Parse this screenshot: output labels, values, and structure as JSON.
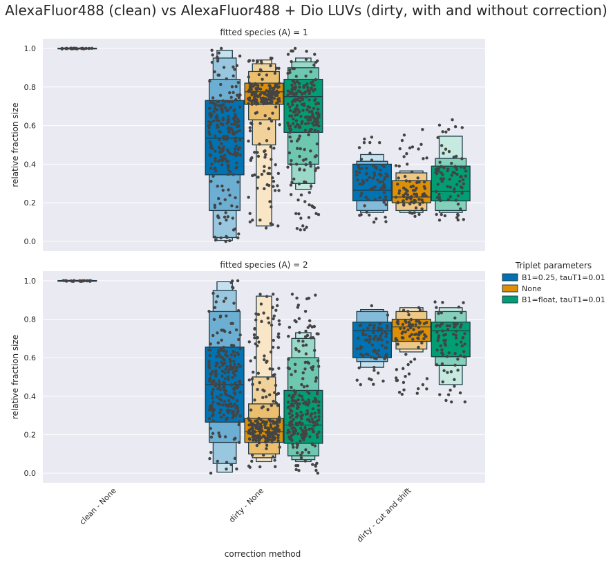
{
  "figure": {
    "title": "AlexaFluor488 (clean) vs AlexaFluor488 + Dio LUVs (dirty, with and without correction)",
    "xlabel": "correction method",
    "legend_title": "Triplet parameters",
    "colors": {
      "background": "#eaeaf2",
      "grid": "#ffffff",
      "edge": "#1e3a47",
      "points": "#444444"
    }
  },
  "chart_data": {
    "type": "boxenplot",
    "categories": [
      "clean - None",
      "dirty - None",
      "dirty - cut and shift"
    ],
    "series": [
      {
        "name": "B1=0.25, tauT1=0.01",
        "color": "#0173b2",
        "light": "#71b1d6"
      },
      {
        "name": "None",
        "color": "#de8f05",
        "light": "#eec27a"
      },
      {
        "name": "B1=float, tauT1=0.01",
        "color": "#029e73",
        "light": "#74c6ab"
      }
    ],
    "ylim": [
      -0.05,
      1.05
    ],
    "yticks": [
      "0.0",
      "0.2",
      "0.4",
      "0.6",
      "0.8",
      "1.0"
    ],
    "ylabel": "relative fraction size",
    "panels": [
      {
        "title": "fitted species (A) = 1",
        "groups": [
          {
            "category": "clean - None",
            "series": "B1=0.25, tauT1=0.01",
            "median": 1.0,
            "levels": [
              [
                0.999,
                1.001
              ],
              [
                0.998,
                1.002
              ]
            ],
            "min": 0.997,
            "max": 1.0,
            "n": 25
          },
          {
            "category": "dirty - None",
            "series": "B1=0.25, tauT1=0.01",
            "median": 0.535,
            "levels": [
              [
                0.345,
                0.73
              ],
              [
                0.16,
                0.84
              ],
              [
                0.02,
                0.95
              ],
              [
                0.005,
                0.99
              ]
            ],
            "min": 0.0,
            "max": 1.0,
            "n": 240
          },
          {
            "category": "dirty - None",
            "series": "None",
            "median": 0.775,
            "levels": [
              [
                0.71,
                0.82
              ],
              [
                0.63,
                0.88
              ],
              [
                0.5,
                0.92
              ],
              [
                0.08,
                0.94
              ]
            ],
            "min": 0.07,
            "max": 0.95,
            "n": 230
          },
          {
            "category": "dirty - None",
            "series": "B1=float, tauT1=0.01",
            "median": 0.75,
            "levels": [
              [
                0.565,
                0.84
              ],
              [
                0.4,
                0.9
              ],
              [
                0.3,
                0.93
              ],
              [
                0.27,
                0.95
              ]
            ],
            "min": 0.06,
            "max": 1.0,
            "n": 230
          },
          {
            "category": "dirty - cut and shift",
            "series": "B1=0.25, tauT1=0.01",
            "median": 0.265,
            "levels": [
              [
                0.21,
                0.4
              ],
              [
                0.16,
                0.415
              ],
              [
                0.15,
                0.45
              ]
            ],
            "min": 0.1,
            "max": 0.54,
            "n": 80
          },
          {
            "category": "dirty - cut and shift",
            "series": "None",
            "median": 0.23,
            "levels": [
              [
                0.2,
                0.315
              ],
              [
                0.16,
                0.355
              ],
              [
                0.15,
                0.365
              ]
            ],
            "min": 0.13,
            "max": 0.58,
            "n": 80
          },
          {
            "category": "dirty - cut and shift",
            "series": "B1=float, tauT1=0.01",
            "median": 0.26,
            "levels": [
              [
                0.21,
                0.39
              ],
              [
                0.16,
                0.43
              ],
              [
                0.15,
                0.545
              ]
            ],
            "min": 0.11,
            "max": 0.63,
            "n": 80
          }
        ]
      },
      {
        "title": "fitted species (A) = 2",
        "groups": [
          {
            "category": "clean - None",
            "series": "B1=0.25, tauT1=0.01",
            "median": 1.0,
            "levels": [
              [
                0.999,
                1.001
              ],
              [
                0.998,
                1.002
              ]
            ],
            "min": 0.997,
            "max": 1.0,
            "n": 25
          },
          {
            "category": "dirty - None",
            "series": "B1=0.25, tauT1=0.01",
            "median": 0.46,
            "levels": [
              [
                0.265,
                0.655
              ],
              [
                0.16,
                0.84
              ],
              [
                0.05,
                0.95
              ],
              [
                0.005,
                0.995
              ]
            ],
            "min": 0.0,
            "max": 1.0,
            "n": 240
          },
          {
            "category": "dirty - None",
            "series": "None",
            "median": 0.215,
            "levels": [
              [
                0.16,
                0.285
              ],
              [
                0.1,
                0.36
              ],
              [
                0.08,
                0.5
              ],
              [
                0.06,
                0.92
              ]
            ],
            "min": 0.03,
            "max": 0.93,
            "n": 230
          },
          {
            "category": "dirty - None",
            "series": "B1=float, tauT1=0.01",
            "median": 0.25,
            "levels": [
              [
                0.155,
                0.43
              ],
              [
                0.09,
                0.6
              ],
              [
                0.07,
                0.7
              ],
              [
                0.06,
                0.73
              ]
            ],
            "min": 0.0,
            "max": 0.93,
            "n": 230
          },
          {
            "category": "dirty - cut and shift",
            "series": "B1=0.25, tauT1=0.01",
            "median": 0.74,
            "levels": [
              [
                0.6,
                0.785
              ],
              [
                0.58,
                0.84
              ],
              [
                0.55,
                0.85
              ]
            ],
            "min": 0.46,
            "max": 0.87,
            "n": 80
          },
          {
            "category": "dirty - cut and shift",
            "series": "None",
            "median": 0.76,
            "levels": [
              [
                0.685,
                0.8
              ],
              [
                0.645,
                0.84
              ],
              [
                0.63,
                0.86
              ]
            ],
            "min": 0.41,
            "max": 0.86,
            "n": 80
          },
          {
            "category": "dirty - cut and shift",
            "series": "B1=float, tauT1=0.01",
            "median": 0.74,
            "levels": [
              [
                0.605,
                0.785
              ],
              [
                0.56,
                0.84
              ],
              [
                0.46,
                0.86
              ]
            ],
            "min": 0.37,
            "max": 0.89,
            "n": 80
          }
        ]
      }
    ],
    "legend_position": "right"
  }
}
